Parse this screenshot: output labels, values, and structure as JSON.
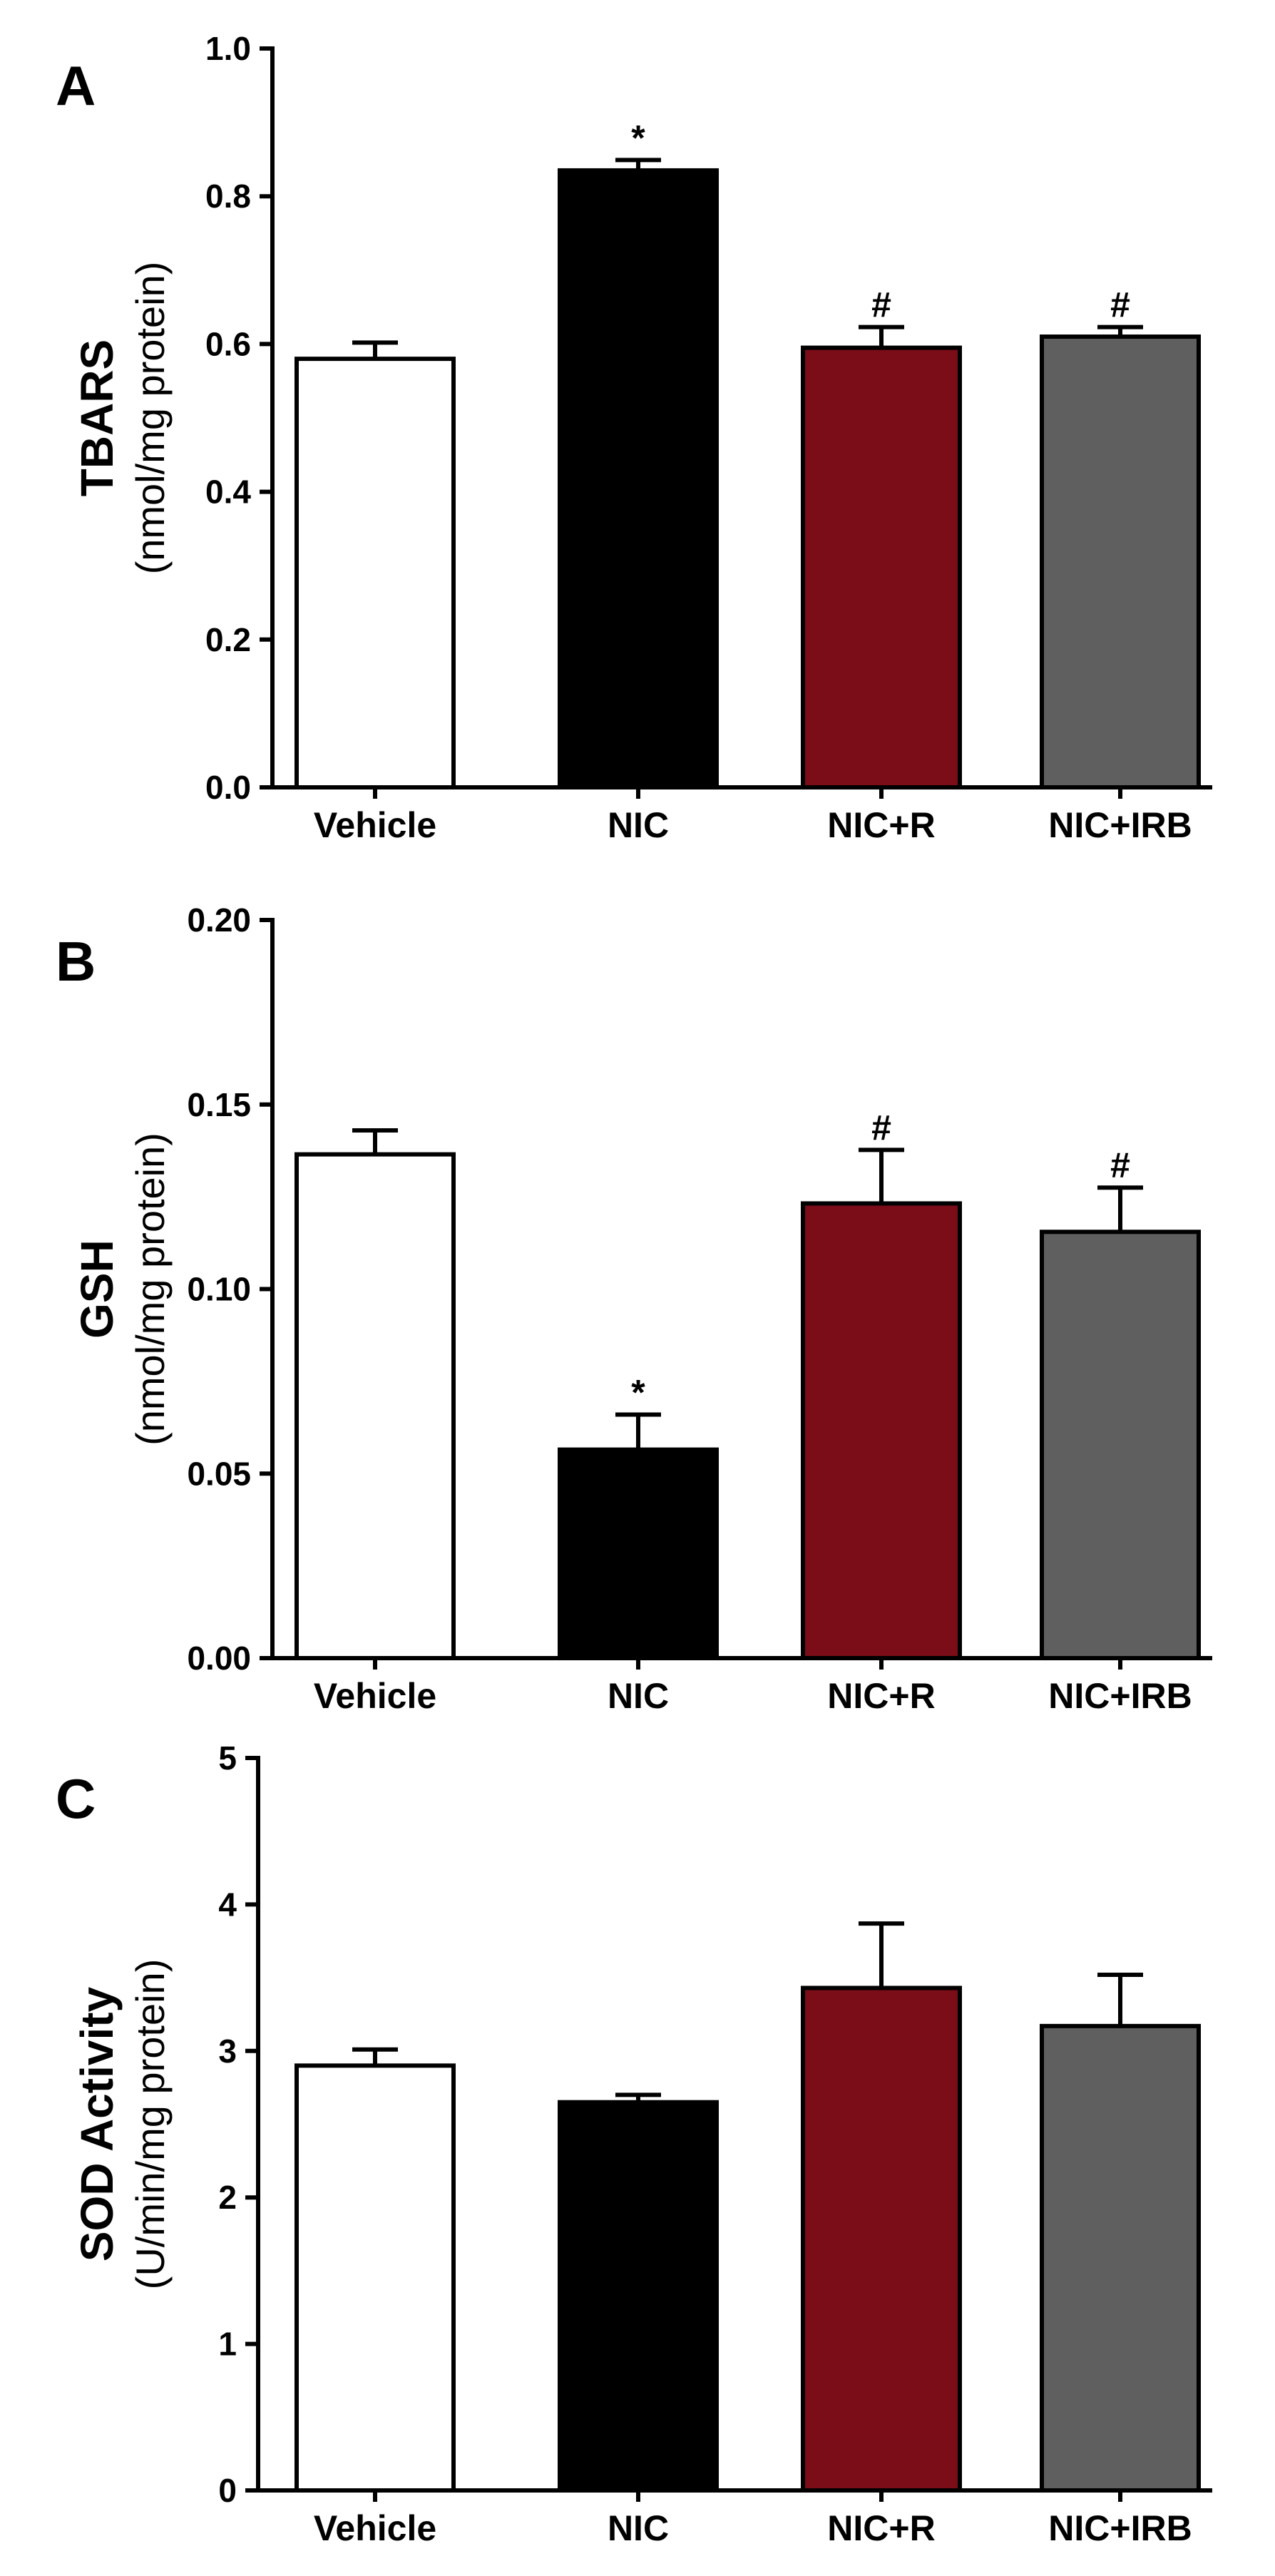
{
  "colors": {
    "Vehicle": "#ffffff",
    "NIC": "#000000",
    "NIC+R": "#7a0d18",
    "NIC+IRB": "#5f5f5f",
    "outline": "#000000"
  },
  "chart_data": [
    {
      "panel": "A",
      "type": "bar",
      "title": "",
      "ylabel": "TBARS",
      "ylabel_sub": "(nmol/mg protein)",
      "xlabel": "",
      "categories": [
        "Vehicle",
        "NIC",
        "NIC+R",
        "NIC+IRB"
      ],
      "values": [
        0.58,
        0.835,
        0.595,
        0.61
      ],
      "errors": [
        0.022,
        0.014,
        0.028,
        0.013
      ],
      "significance": [
        "",
        "*",
        "#",
        "#"
      ],
      "ylim": [
        0,
        1.0
      ],
      "yticks": [
        0.0,
        0.2,
        0.4,
        0.6,
        0.8,
        1.0
      ],
      "ytick_labels": [
        "0.0",
        "0.2",
        "0.4",
        "0.6",
        "0.8",
        "1.0"
      ],
      "grid": false
    },
    {
      "panel": "B",
      "type": "bar",
      "title": "",
      "ylabel": "GSH",
      "ylabel_sub": "(nmol/mg protein)",
      "xlabel": "",
      "categories": [
        "Vehicle",
        "NIC",
        "NIC+R",
        "NIC+IRB"
      ],
      "values": [
        0.1365,
        0.0565,
        0.1232,
        0.1155
      ],
      "errors": [
        0.0065,
        0.0095,
        0.0145,
        0.012
      ],
      "significance": [
        "",
        "*",
        "#",
        "#"
      ],
      "ylim": [
        0,
        0.2
      ],
      "yticks": [
        0.0,
        0.05,
        0.1,
        0.15,
        0.2
      ],
      "ytick_labels": [
        "0.00",
        "0.05",
        "0.10",
        "0.15",
        "0.20"
      ],
      "grid": false
    },
    {
      "panel": "C",
      "type": "bar",
      "title": "",
      "ylabel": "SOD Activity",
      "ylabel_sub": "(U/min/mg protein)",
      "xlabel": "",
      "categories": [
        "Vehicle",
        "NIC",
        "NIC+R",
        "NIC+IRB"
      ],
      "values": [
        2.9,
        2.65,
        3.43,
        3.17
      ],
      "errors": [
        0.11,
        0.05,
        0.44,
        0.35
      ],
      "significance": [
        "",
        "",
        "",
        ""
      ],
      "ylim": [
        0,
        5
      ],
      "yticks": [
        0,
        1,
        2,
        3,
        4,
        5
      ],
      "ytick_labels": [
        "0",
        "1",
        "2",
        "3",
        "4",
        "5"
      ],
      "grid": false
    }
  ]
}
